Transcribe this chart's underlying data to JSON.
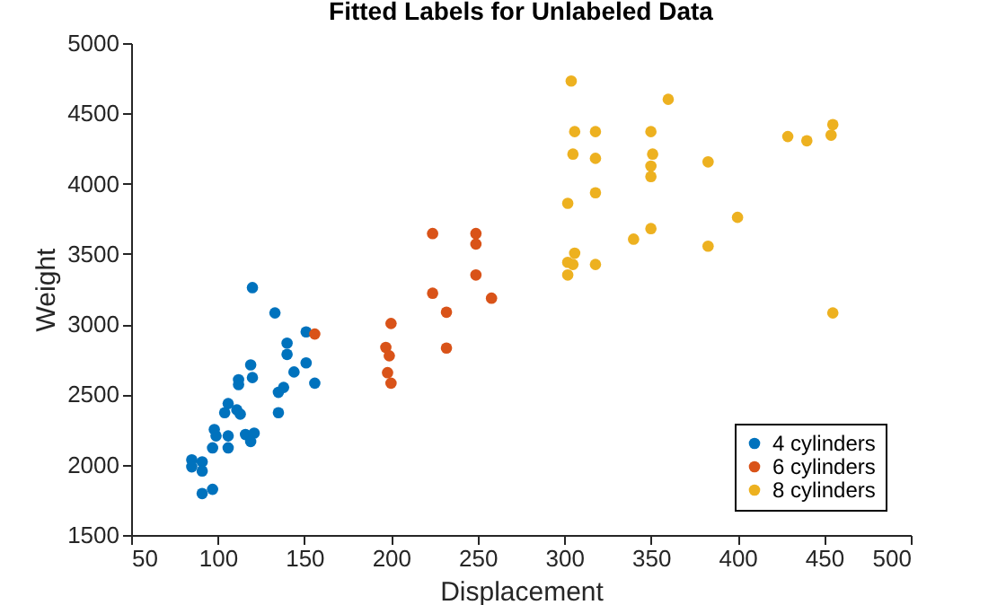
{
  "chart_data": {
    "type": "scatter",
    "title": "Fitted Labels for Unlabeled Data",
    "xlabel": "Displacement",
    "ylabel": "Weight",
    "xlim": [
      50,
      500
    ],
    "xticks": [
      50,
      100,
      150,
      200,
      250,
      300,
      350,
      400,
      450,
      500
    ],
    "ylim": [
      1500,
      5000
    ],
    "yticks": [
      1500,
      2000,
      2500,
      3000,
      3500,
      4000,
      4500,
      5000
    ],
    "grid": false,
    "legend": "bottom right",
    "marker": "circle",
    "series": [
      {
        "name": "4 cylinders",
        "color": "#0072bd",
        "x": [
          120,
          133,
          151,
          140,
          140,
          151,
          144,
          119,
          120,
          112,
          112,
          156,
          138,
          135,
          135,
          106,
          111,
          113,
          104,
          98,
          99,
          106,
          116,
          121,
          119,
          97,
          106,
          85,
          85,
          91,
          91,
          97,
          91
        ],
        "values": [
          3260,
          3080,
          2945,
          2865,
          2785,
          2725,
          2660,
          2710,
          2620,
          2605,
          2570,
          2580,
          2550,
          2515,
          2370,
          2435,
          2390,
          2360,
          2370,
          2250,
          2205,
          2205,
          2215,
          2225,
          2165,
          2120,
          2120,
          2035,
          1985,
          2020,
          1955,
          1825,
          1795
        ]
      },
      {
        "name": "6 cylinders",
        "color": "#d95319",
        "x": [
          156,
          224,
          249,
          249,
          249,
          224,
          258,
          232,
          200,
          197,
          199,
          232,
          198,
          200
        ],
        "values": [
          2930,
          3645,
          3645,
          3570,
          3350,
          3220,
          3185,
          3085,
          3005,
          2835,
          2775,
          2830,
          2655,
          2580
        ]
      },
      {
        "name": "8 cylinders",
        "color": "#edb120",
        "x": [
          304,
          360,
          306,
          318,
          350,
          429,
          440,
          455,
          454,
          305,
          318,
          351,
          350,
          350,
          383,
          318,
          302,
          400,
          350,
          340,
          383,
          306,
          302,
          305,
          318,
          302,
          455
        ],
        "values": [
          4730,
          4600,
          4370,
          4370,
          4370,
          4335,
          4305,
          4420,
          4345,
          4210,
          4180,
          4210,
          4125,
          4050,
          4155,
          3935,
          3860,
          3760,
          3680,
          3605,
          3555,
          3505,
          3440,
          3425,
          3425,
          3350,
          3080
        ]
      }
    ]
  }
}
